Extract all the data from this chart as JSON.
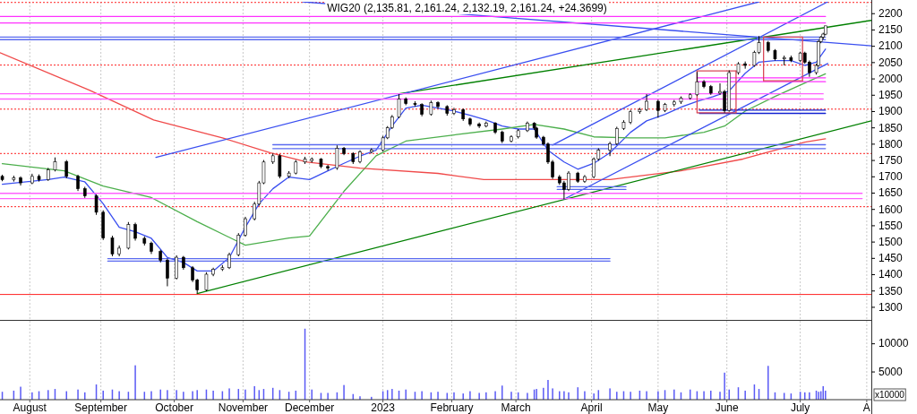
{
  "chart_data": [
    {
      "type": "candlestick",
      "title": "WIG20 (2,135.81, 2,161.24, 2,132.19, 2,161.24, +24.3699)",
      "x": [
        "2022-07-20",
        "2022-07-25",
        "2022-07-28",
        "2022-08-02",
        "2022-08-05",
        "2022-08-09",
        "2022-08-12",
        "2022-08-17",
        "2022-08-22",
        "2022-08-25",
        "2022-08-30",
        "2022-09-02",
        "2022-09-06",
        "2022-09-09",
        "2022-09-13",
        "2022-09-16",
        "2022-09-20",
        "2022-09-23",
        "2022-09-27",
        "2022-09-30",
        "2022-10-04",
        "2022-10-07",
        "2022-10-11",
        "2022-10-13",
        "2022-10-17",
        "2022-10-20",
        "2022-10-24",
        "2022-10-27",
        "2022-10-31",
        "2022-11-03",
        "2022-11-07",
        "2022-11-09",
        "2022-11-11",
        "2022-11-15",
        "2022-11-18",
        "2022-11-22",
        "2022-11-25",
        "2022-11-29",
        "2022-12-02",
        "2022-12-06",
        "2022-12-09",
        "2022-12-13",
        "2022-12-16",
        "2022-12-20",
        "2022-12-23",
        "2022-12-28",
        "2023-01-02",
        "2023-01-04",
        "2023-01-06",
        "2023-01-09",
        "2023-01-12",
        "2023-01-16",
        "2023-01-19",
        "2023-01-23",
        "2023-01-26",
        "2023-01-30",
        "2023-02-02",
        "2023-02-06",
        "2023-02-09",
        "2023-02-13",
        "2023-02-16",
        "2023-02-20",
        "2023-02-23",
        "2023-02-27",
        "2023-03-02",
        "2023-03-06",
        "2023-03-09",
        "2023-03-10",
        "2023-03-13",
        "2023-03-15",
        "2023-03-17",
        "2023-03-20",
        "2023-03-22",
        "2023-03-24",
        "2023-03-28",
        "2023-03-31",
        "2023-04-04",
        "2023-04-06",
        "2023-04-11",
        "2023-04-14",
        "2023-04-17",
        "2023-04-20",
        "2023-04-24",
        "2023-04-27",
        "2023-05-02",
        "2023-05-05",
        "2023-05-09",
        "2023-05-12",
        "2023-05-16",
        "2023-05-19",
        "2023-05-22",
        "2023-05-25",
        "2023-05-29",
        "2023-05-31",
        "2023-06-02",
        "2023-06-06",
        "2023-06-09",
        "2023-06-13",
        "2023-06-15",
        "2023-06-19",
        "2023-06-22",
        "2023-06-26",
        "2023-06-29",
        "2023-07-03",
        "2023-07-05",
        "2023-07-07",
        "2023-07-10",
        "2023-07-11",
        "2023-07-12",
        "2023-07-13",
        "2023-07-14"
      ],
      "ohlc": [
        [
          1700,
          1705,
          1685,
          1690
        ],
        [
          1690,
          1702,
          1684,
          1695
        ],
        [
          1695,
          1700,
          1672,
          1680
        ],
        [
          1680,
          1708,
          1676,
          1700
        ],
        [
          1700,
          1706,
          1684,
          1690
        ],
        [
          1690,
          1726,
          1686,
          1720
        ],
        [
          1720,
          1758,
          1715,
          1745
        ],
        [
          1745,
          1750,
          1694,
          1700
        ],
        [
          1700,
          1705,
          1655,
          1662
        ],
        [
          1662,
          1668,
          1634,
          1640
        ],
        [
          1640,
          1645,
          1582,
          1590
        ],
        [
          1590,
          1596,
          1505,
          1511
        ],
        [
          1511,
          1518,
          1455,
          1462
        ],
        [
          1462,
          1488,
          1455,
          1480
        ],
        [
          1480,
          1560,
          1476,
          1552
        ],
        [
          1552,
          1558,
          1503,
          1510
        ],
        [
          1510,
          1516,
          1488,
          1495
        ],
        [
          1495,
          1500,
          1462,
          1470
        ],
        [
          1470,
          1475,
          1436,
          1443
        ],
        [
          1443,
          1448,
          1363,
          1388
        ],
        [
          1388,
          1458,
          1384,
          1452
        ],
        [
          1452,
          1456,
          1414,
          1420
        ],
        [
          1420,
          1425,
          1376,
          1382
        ],
        [
          1382,
          1386,
          1341,
          1352
        ],
        [
          1352,
          1406,
          1348,
          1400
        ],
        [
          1400,
          1420,
          1394,
          1415
        ],
        [
          1415,
          1428,
          1410,
          1420
        ],
        [
          1420,
          1466,
          1416,
          1460
        ],
        [
          1460,
          1526,
          1455,
          1520
        ],
        [
          1520,
          1576,
          1515,
          1570
        ],
        [
          1570,
          1622,
          1565,
          1615
        ],
        [
          1615,
          1686,
          1610,
          1680
        ],
        [
          1680,
          1750,
          1676,
          1744
        ],
        [
          1744,
          1770,
          1738,
          1763
        ],
        [
          1763,
          1768,
          1694,
          1700
        ],
        [
          1700,
          1716,
          1695,
          1710
        ],
        [
          1710,
          1750,
          1706,
          1744
        ],
        [
          1744,
          1760,
          1738,
          1753
        ],
        [
          1748,
          1758,
          1742,
          1753
        ],
        [
          1753,
          1756,
          1725,
          1730
        ],
        [
          1730,
          1735,
          1718,
          1725
        ],
        [
          1725,
          1795,
          1720,
          1786
        ],
        [
          1786,
          1790,
          1765,
          1770
        ],
        [
          1770,
          1774,
          1738,
          1745
        ],
        [
          1745,
          1780,
          1740,
          1775
        ],
        [
          1775,
          1786,
          1770,
          1780
        ],
        [
          1780,
          1824,
          1776,
          1818
        ],
        [
          1818,
          1854,
          1814,
          1849
        ],
        [
          1849,
          1888,
          1845,
          1882
        ],
        [
          1882,
          1952,
          1878,
          1937
        ],
        [
          1937,
          1942,
          1918,
          1923
        ],
        [
          1923,
          1930,
          1914,
          1920
        ],
        [
          1920,
          1924,
          1884,
          1890
        ],
        [
          1890,
          1932,
          1886,
          1926
        ],
        [
          1926,
          1930,
          1908,
          1914
        ],
        [
          1914,
          1918,
          1886,
          1893
        ],
        [
          1893,
          1910,
          1888,
          1904
        ],
        [
          1904,
          1908,
          1870,
          1876
        ],
        [
          1876,
          1880,
          1854,
          1860
        ],
        [
          1860,
          1865,
          1848,
          1854
        ],
        [
          1854,
          1868,
          1850,
          1863
        ],
        [
          1863,
          1866,
          1830,
          1835
        ],
        [
          1835,
          1840,
          1802,
          1808
        ],
        [
          1808,
          1826,
          1804,
          1821
        ],
        [
          1821,
          1845,
          1816,
          1840
        ],
        [
          1840,
          1868,
          1836,
          1863
        ],
        [
          1863,
          1866,
          1842,
          1848
        ],
        [
          1848,
          1852,
          1815,
          1820
        ],
        [
          1820,
          1824,
          1794,
          1799
        ],
        [
          1799,
          1804,
          1738,
          1744
        ],
        [
          1744,
          1750,
          1692,
          1698
        ],
        [
          1698,
          1704,
          1674,
          1680
        ],
        [
          1680,
          1686,
          1630,
          1660
        ],
        [
          1660,
          1716,
          1655,
          1710
        ],
        [
          1710,
          1714,
          1680,
          1685
        ],
        [
          1685,
          1704,
          1680,
          1699
        ],
        [
          1699,
          1758,
          1694,
          1753
        ],
        [
          1753,
          1786,
          1748,
          1780
        ],
        [
          1780,
          1806,
          1762,
          1800
        ],
        [
          1800,
          1852,
          1796,
          1847
        ],
        [
          1847,
          1872,
          1842,
          1866
        ],
        [
          1866,
          1904,
          1860,
          1898
        ],
        [
          1898,
          1910,
          1892,
          1905
        ],
        [
          1905,
          1952,
          1900,
          1930
        ],
        [
          1930,
          1935,
          1880,
          1902
        ],
        [
          1902,
          1925,
          1897,
          1920
        ],
        [
          1920,
          1934,
          1914,
          1928
        ],
        [
          1928,
          1945,
          1922,
          1940
        ],
        [
          1940,
          1955,
          1935,
          1950
        ],
        [
          1950,
          2020,
          1946,
          1990
        ],
        [
          1990,
          1995,
          1970,
          1975
        ],
        [
          1975,
          1980,
          1950,
          1955
        ],
        [
          1955,
          1985,
          1950,
          1960
        ],
        [
          1960,
          1965,
          1895,
          1902
        ],
        [
          1902,
          2025,
          1898,
          2018
        ],
        [
          2018,
          2050,
          2012,
          2045
        ],
        [
          2045,
          2052,
          2030,
          2040
        ],
        [
          2040,
          2085,
          2036,
          2080
        ],
        [
          2080,
          2130,
          2075,
          2110
        ],
        [
          2110,
          2115,
          2080,
          2086
        ],
        [
          2086,
          2090,
          2055,
          2060
        ],
        [
          2060,
          2070,
          2040,
          2064
        ],
        [
          2064,
          2070,
          2050,
          2055
        ],
        [
          2055,
          2082,
          2050,
          2078
        ],
        [
          2078,
          2082,
          2045,
          2050
        ],
        [
          2050,
          2055,
          2005,
          2018
        ],
        [
          2018,
          2045,
          2012,
          2040
        ],
        [
          2040,
          2118,
          2036,
          2113
        ],
        [
          2113,
          2130,
          2108,
          2127
        ],
        [
          2127,
          2140,
          2120,
          2136
        ],
        [
          2135.81,
          2161.24,
          2132.19,
          2161.24
        ]
      ],
      "series": [
        {
          "type": "line",
          "color": "#3a4ff0",
          "x": [
            "2022-07-20",
            "2022-08-09",
            "2022-08-16",
            "2022-08-25",
            "2022-09-02",
            "2022-09-09",
            "2022-09-16",
            "2022-09-23",
            "2022-09-30",
            "2022-10-07",
            "2022-10-13",
            "2022-10-20",
            "2022-10-27",
            "2022-11-03",
            "2022-11-09",
            "2022-11-15",
            "2022-11-22",
            "2022-12-01",
            "2022-12-09",
            "2022-12-16",
            "2022-12-23",
            "2022-12-30",
            "2023-01-06",
            "2023-01-12",
            "2023-01-19",
            "2023-01-26",
            "2023-02-02",
            "2023-02-09",
            "2023-02-16",
            "2023-02-23",
            "2023-03-02",
            "2023-03-09",
            "2023-03-15",
            "2023-03-22",
            "2023-03-28",
            "2023-04-04",
            "2023-04-11",
            "2023-04-20",
            "2023-04-27",
            "2023-05-05",
            "2023-05-12",
            "2023-05-19",
            "2023-05-26",
            "2023-06-02",
            "2023-06-09",
            "2023-06-15",
            "2023-06-22",
            "2023-06-29",
            "2023-07-05",
            "2023-07-10",
            "2023-07-14"
          ],
          "values": [
            1676,
            1690,
            1698,
            1683,
            1616,
            1544,
            1530,
            1510,
            1451,
            1436,
            1410,
            1410,
            1451,
            1544,
            1616,
            1662,
            1698,
            1690,
            1717,
            1740,
            1762,
            1780,
            1854,
            1909,
            1918,
            1909,
            1900,
            1887,
            1873,
            1854,
            1845,
            1845,
            1780,
            1744,
            1722,
            1740,
            1772,
            1835,
            1870,
            1890,
            1912,
            1930,
            1944,
            1962,
            2016,
            2050,
            2055,
            2055,
            2040,
            2050,
            2090
          ]
        },
        {
          "type": "line",
          "color": "#4caf4c",
          "x": [
            "2022-07-20",
            "2022-08-16",
            "2022-09-02",
            "2022-09-23",
            "2022-10-13",
            "2022-11-03",
            "2022-11-22",
            "2022-12-01",
            "2022-12-16",
            "2022-12-30",
            "2023-01-12",
            "2023-02-02",
            "2023-02-23",
            "2023-03-09",
            "2023-03-22",
            "2023-04-04",
            "2023-04-20",
            "2023-05-05",
            "2023-05-22",
            "2023-05-31",
            "2023-06-09",
            "2023-06-22",
            "2023-07-05",
            "2023-07-14"
          ],
          "values": [
            1739,
            1717,
            1670,
            1635,
            1561,
            1489,
            1511,
            1517,
            1654,
            1763,
            1808,
            1827,
            1845,
            1859,
            1845,
            1821,
            1818,
            1818,
            1835,
            1854,
            1900,
            1945,
            1986,
            2014
          ]
        },
        {
          "type": "line",
          "color": "#f04a4a",
          "x": [
            "2022-07-19",
            "2022-08-27",
            "2022-09-24",
            "2022-10-24",
            "2022-11-14",
            "2022-11-30",
            "2022-12-23",
            "2023-01-26",
            "2023-02-15",
            "2023-03-10",
            "2023-04-11",
            "2023-05-12",
            "2023-06-08",
            "2023-07-05",
            "2023-07-14"
          ],
          "values": [
            2079,
            1964,
            1873,
            1818,
            1772,
            1744,
            1725,
            1709,
            1690,
            1690,
            1690,
            1717,
            1753,
            1805,
            1815
          ]
        },
        {
          "type": "line",
          "color": "#008000",
          "x": [
            "2022-10-13",
            "2023-08-03"
          ],
          "values": [
            1341,
            1870
          ]
        },
        {
          "type": "line",
          "color": "#008000",
          "x": [
            "2023-01-09",
            "2023-08-03"
          ],
          "values": [
            1953,
            2178
          ]
        },
        {
          "type": "line",
          "color": "#3a4ff0",
          "x": [
            "2022-09-25",
            "2023-06-15"
          ],
          "values": [
            1758,
            2235
          ]
        },
        {
          "type": "line",
          "color": "#3a4ff0",
          "x": [
            "2023-03-17",
            "2023-07-15"
          ],
          "values": [
            1796,
            2235
          ]
        },
        {
          "type": "line",
          "color": "#3a4ff0",
          "x": [
            "2023-03-22",
            "2023-07-15"
          ],
          "values": [
            1630,
            2046
          ]
        },
        {
          "type": "line",
          "color": "#3a4ff0",
          "x": [
            "2022-11-28",
            "2023-08-03"
          ],
          "values": [
            2235,
            2100
          ]
        },
        {
          "type": "line",
          "color": "#ff30ff",
          "x": [
            "2022-07-19",
            "2023-07-14"
          ],
          "values": [
            2170,
            2170
          ]
        },
        {
          "type": "line",
          "color": "#ff30ff",
          "x": [
            "2022-07-19",
            "2023-07-14"
          ],
          "values": [
            2190,
            2190
          ]
        },
        {
          "type": "line",
          "color": "#5a6af0",
          "x": [
            "2022-07-19",
            "2023-07-14"
          ],
          "values": [
            2119,
            2119
          ]
        },
        {
          "type": "line",
          "color": "#5a6af0",
          "x": [
            "2022-07-19",
            "2023-07-14"
          ],
          "values": [
            2127,
            2127
          ]
        },
        {
          "type": "line",
          "color": "#ff30ff",
          "x": [
            "2023-05-19",
            "2023-07-14"
          ],
          "values": [
            1990,
            1990
          ]
        },
        {
          "type": "line",
          "color": "#ff30ff",
          "x": [
            "2023-05-19",
            "2023-07-14"
          ],
          "values": [
            2002,
            2002
          ]
        },
        {
          "type": "line",
          "color": "#ff60ff",
          "x": [
            "2022-07-19",
            "2023-07-13"
          ],
          "values": [
            1937,
            1937
          ]
        },
        {
          "type": "line",
          "color": "#ff60ff",
          "x": [
            "2022-07-19",
            "2023-07-13"
          ],
          "values": [
            1953,
            1953
          ]
        },
        {
          "type": "line",
          "color": "#1020d0",
          "x": [
            "2023-05-20",
            "2023-07-14"
          ],
          "values": [
            1893,
            1893
          ]
        },
        {
          "type": "line",
          "color": "#1020d0",
          "x": [
            "2023-05-20",
            "2023-07-14"
          ],
          "values": [
            1903,
            1903
          ]
        },
        {
          "type": "line",
          "color": "#5a6af0",
          "x": [
            "2022-11-15",
            "2023-07-14"
          ],
          "values": [
            1785,
            1785
          ]
        },
        {
          "type": "line",
          "color": "#5a6af0",
          "x": [
            "2022-11-15",
            "2023-07-14"
          ],
          "values": [
            1797,
            1797
          ]
        },
        {
          "type": "line",
          "color": "#ff60ff",
          "x": [
            "2022-07-19",
            "2023-07-30"
          ],
          "values": [
            1632,
            1632
          ]
        },
        {
          "type": "line",
          "color": "#ff60ff",
          "x": [
            "2022-07-19",
            "2023-07-30"
          ],
          "values": [
            1648,
            1648
          ]
        },
        {
          "type": "line",
          "color": "#5a6af0",
          "x": [
            "2022-09-04",
            "2023-04-11"
          ],
          "values": [
            1440,
            1440
          ]
        },
        {
          "type": "line",
          "color": "#5a6af0",
          "x": [
            "2022-09-04",
            "2023-04-11"
          ],
          "values": [
            1448,
            1448
          ]
        },
        {
          "type": "line",
          "color": "#5a6af0",
          "x": [
            "2023-03-19",
            "2023-04-18"
          ],
          "values": [
            1660,
            1660
          ]
        },
        {
          "type": "line",
          "color": "#5a6af0",
          "x": [
            "2023-03-19",
            "2023-04-18"
          ],
          "values": [
            1668,
            1668
          ]
        },
        {
          "type": "line",
          "color": "#d84858",
          "x": [
            "2023-05-19",
            "2023-06-05"
          ],
          "values": [
            1895,
            1895
          ]
        },
        {
          "type": "line",
          "color": "#d84858",
          "x": [
            "2023-05-19",
            "2023-06-05"
          ],
          "values": [
            2023,
            2023
          ]
        },
        {
          "type": "line",
          "color": "#d84858",
          "x": [
            "2023-05-19",
            "2023-05-19"
          ],
          "values": [
            1895,
            2023
          ]
        },
        {
          "type": "line",
          "color": "#d84858",
          "x": [
            "2023-06-05",
            "2023-06-05"
          ],
          "values": [
            1895,
            2023
          ]
        },
        {
          "type": "line",
          "color": "#d84858",
          "x": [
            "2023-06-17",
            "2023-07-04"
          ],
          "values": [
            1993,
            1993
          ]
        },
        {
          "type": "line",
          "color": "#d84858",
          "x": [
            "2023-06-17",
            "2023-07-04"
          ],
          "values": [
            2127,
            2127
          ]
        },
        {
          "type": "line",
          "color": "#d84858",
          "x": [
            "2023-06-17",
            "2023-06-17"
          ],
          "values": [
            1993,
            2127
          ]
        },
        {
          "type": "line",
          "color": "#d84858",
          "x": [
            "2023-07-04",
            "2023-07-04"
          ],
          "values": [
            1993,
            2127
          ]
        }
      ],
      "ref_lines": [
        {
          "axis": "y",
          "value": 2233,
          "color": "#ff2020",
          "line_style": "dotted"
        },
        {
          "axis": "y",
          "value": 2041,
          "color": "#ff2020",
          "line_style": "dotted"
        },
        {
          "axis": "y",
          "value": 1906,
          "color": "#ff2020",
          "line_style": "dotted"
        },
        {
          "axis": "y",
          "value": 1770,
          "color": "#ff2020",
          "line_style": "dotted"
        },
        {
          "axis": "y",
          "value": 1607,
          "color": "#ff2020",
          "line_style": "dotted"
        },
        {
          "axis": "y",
          "value": 1338,
          "color": "#ff2020",
          "line_style": "solid"
        }
      ],
      "xlim": [
        "2022-07-19",
        "2023-08-03"
      ],
      "xticks": [
        "2022-08-01",
        "2022-09-01",
        "2022-10-03",
        "2022-11-02",
        "2022-12-01",
        "2023-01-02",
        "2023-02-01",
        "2023-03-01",
        "2023-04-03",
        "2023-05-02",
        "2023-06-01",
        "2023-07-03",
        "2023-08-01"
      ],
      "ylim": [
        1260,
        2235
      ],
      "yticks": [
        1300,
        1350,
        1400,
        1450,
        1500,
        1550,
        1600,
        1650,
        1700,
        1750,
        1800,
        1850,
        1900,
        1950,
        2000,
        2050,
        2100,
        2150,
        2200
      ],
      "grid": "x",
      "tick_labels": "y"
    },
    {
      "type": "bar",
      "color": "#5a5af5",
      "ylabel": "x10000",
      "x": [
        "2022-07-20",
        "2022-07-25",
        "2022-07-28",
        "2022-08-02",
        "2022-08-05",
        "2022-08-09",
        "2022-08-12",
        "2022-08-17",
        "2022-08-22",
        "2022-08-25",
        "2022-08-30",
        "2022-09-02",
        "2022-09-06",
        "2022-09-09",
        "2022-09-13",
        "2022-09-16",
        "2022-09-20",
        "2022-09-23",
        "2022-09-27",
        "2022-09-30",
        "2022-10-04",
        "2022-10-07",
        "2022-10-11",
        "2022-10-13",
        "2022-10-17",
        "2022-10-20",
        "2022-10-24",
        "2022-10-27",
        "2022-10-31",
        "2022-11-03",
        "2022-11-07",
        "2022-11-09",
        "2022-11-11",
        "2022-11-15",
        "2022-11-18",
        "2022-11-22",
        "2022-11-25",
        "2022-11-29",
        "2022-12-02",
        "2022-12-06",
        "2022-12-09",
        "2022-12-13",
        "2022-12-16",
        "2022-12-20",
        "2022-12-23",
        "2022-12-28",
        "2023-01-02",
        "2023-01-04",
        "2023-01-06",
        "2023-01-09",
        "2023-01-12",
        "2023-01-16",
        "2023-01-19",
        "2023-01-23",
        "2023-01-26",
        "2023-01-30",
        "2023-02-02",
        "2023-02-06",
        "2023-02-09",
        "2023-02-13",
        "2023-02-16",
        "2023-02-20",
        "2023-02-23",
        "2023-02-27",
        "2023-03-02",
        "2023-03-06",
        "2023-03-09",
        "2023-03-10",
        "2023-03-13",
        "2023-03-15",
        "2023-03-17",
        "2023-03-20",
        "2023-03-22",
        "2023-03-24",
        "2023-03-28",
        "2023-03-31",
        "2023-04-04",
        "2023-04-06",
        "2023-04-11",
        "2023-04-14",
        "2023-04-17",
        "2023-04-20",
        "2023-04-24",
        "2023-04-27",
        "2023-05-02",
        "2023-05-05",
        "2023-05-09",
        "2023-05-12",
        "2023-05-16",
        "2023-05-19",
        "2023-05-22",
        "2023-05-25",
        "2023-05-29",
        "2023-05-31",
        "2023-06-02",
        "2023-06-06",
        "2023-06-09",
        "2023-06-13",
        "2023-06-15",
        "2023-06-19",
        "2023-06-22",
        "2023-06-26",
        "2023-06-29",
        "2023-07-03",
        "2023-07-05",
        "2023-07-07",
        "2023-07-10",
        "2023-07-11",
        "2023-07-12",
        "2023-07-13",
        "2023-07-14"
      ],
      "values": [
        1400,
        1600,
        2300,
        1300,
        1500,
        1700,
        1900,
        1500,
        1800,
        1300,
        2700,
        1600,
        1800,
        1500,
        1400,
        6100,
        1400,
        1500,
        1800,
        1700,
        1700,
        1400,
        1500,
        1700,
        1800,
        1600,
        1500,
        2000,
        1900,
        1800,
        2400,
        1700,
        1900,
        2100,
        1700,
        1400,
        1600,
        12600,
        1800,
        1200,
        1200,
        1300,
        2600,
        1000,
        600,
        500,
        1500,
        1700,
        1900,
        1600,
        1800,
        1400,
        1500,
        1300,
        1400,
        1200,
        1300,
        1100,
        1500,
        1200,
        1300,
        1500,
        2500,
        1400,
        1300,
        1200,
        1800,
        1900,
        2100,
        3500,
        2000,
        1500,
        1500,
        1300,
        2200,
        1500,
        1100,
        1700,
        2000,
        1400,
        1500,
        1400,
        1600,
        1500,
        1500,
        1700,
        1800,
        1300,
        1800,
        1500,
        1500,
        1600,
        1400,
        4800,
        1800,
        2200,
        1600,
        2700,
        1900,
        6000,
        1300,
        1200,
        1100,
        1400,
        1300,
        1300,
        1600,
        1400,
        1500,
        2400,
        1600
      ],
      "xlim": [
        "2022-07-19",
        "2023-08-03"
      ],
      "xticks": [
        {
          "value": "2022-08-01",
          "label": "August"
        },
        {
          "value": "2022-09-01",
          "label": "September"
        },
        {
          "value": "2022-10-03",
          "label": "October"
        },
        {
          "value": "2022-11-02",
          "label": "November"
        },
        {
          "value": "2022-12-01",
          "label": "December"
        },
        {
          "value": "2023-01-02",
          "label": "2023"
        },
        {
          "value": "2023-02-01",
          "label": "February"
        },
        {
          "value": "2023-03-01",
          "label": "March"
        },
        {
          "value": "2023-04-03",
          "label": "April"
        },
        {
          "value": "2023-05-02",
          "label": "May"
        },
        {
          "value": "2023-06-01",
          "label": "June"
        },
        {
          "value": "2023-07-03",
          "label": "July"
        },
        {
          "value": "2023-08-01",
          "label": "A"
        }
      ],
      "ylim": [
        0,
        14000
      ],
      "yticks": [
        5000,
        10000
      ],
      "grid": "x"
    }
  ]
}
